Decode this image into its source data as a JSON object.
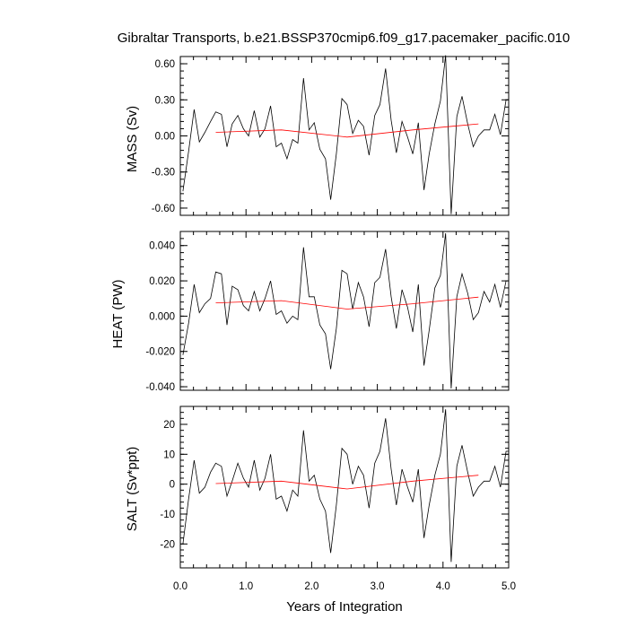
{
  "title": "Gibraltar Transports, b.e21.BSSP370cmip6.f09_g17.pacemaker_pacific.010",
  "chart_data": [
    {
      "type": "line",
      "ylabel": "MASS (Sv)",
      "ylim": [
        -0.66,
        0.66
      ],
      "yticks": [
        -0.6,
        -0.3,
        0.0,
        0.3,
        0.6
      ],
      "ytick_labels": [
        "-0.60",
        "-0.30",
        "0.00",
        "0.30",
        "0.60"
      ],
      "xlim": [
        0,
        5
      ],
      "series": [
        {
          "color": "#000000",
          "x": [
            0.04,
            0.125,
            0.21,
            0.29,
            0.375,
            0.46,
            0.54,
            0.625,
            0.71,
            0.79,
            0.875,
            0.96,
            1.04,
            1.125,
            1.21,
            1.29,
            1.375,
            1.46,
            1.54,
            1.625,
            1.71,
            1.79,
            1.875,
            1.96,
            2.04,
            2.125,
            2.21,
            2.29,
            2.375,
            2.46,
            2.54,
            2.625,
            2.71,
            2.79,
            2.875,
            2.96,
            3.04,
            3.125,
            3.21,
            3.29,
            3.375,
            3.46,
            3.54,
            3.625,
            3.71,
            3.79,
            3.875,
            3.96,
            4.04,
            4.125,
            4.21,
            4.29,
            4.375,
            4.46,
            4.54,
            4.625,
            4.71,
            4.79,
            4.875,
            4.96,
            5.0
          ],
          "y": [
            -0.46,
            -0.13,
            0.22,
            -0.05,
            0.03,
            0.12,
            0.2,
            0.18,
            -0.09,
            0.1,
            0.17,
            0.06,
            0.0,
            0.21,
            -0.01,
            0.06,
            0.25,
            -0.09,
            -0.06,
            -0.19,
            -0.03,
            -0.06,
            0.48,
            0.05,
            0.11,
            -0.11,
            -0.19,
            -0.53,
            -0.15,
            0.31,
            0.26,
            0.02,
            0.13,
            0.08,
            -0.16,
            0.17,
            0.26,
            0.56,
            0.13,
            -0.14,
            0.12,
            -0.01,
            -0.15,
            0.11,
            -0.45,
            -0.15,
            0.1,
            0.29,
            0.67,
            -0.65,
            0.16,
            0.33,
            0.1,
            -0.09,
            0.0,
            0.05,
            0.05,
            0.18,
            0.01,
            0.3,
            0.3
          ]
        },
        {
          "color": "#ff0000",
          "x": [
            0.54,
            1.54,
            2.54,
            3.54,
            4.54
          ],
          "y": [
            0.03,
            0.05,
            -0.01,
            0.05,
            0.1
          ]
        }
      ]
    },
    {
      "type": "line",
      "ylabel": "HEAT (PW)",
      "ylim": [
        -0.042,
        0.048
      ],
      "yticks": [
        -0.04,
        -0.02,
        0.0,
        0.02,
        0.04
      ],
      "ytick_labels": [
        "-0.040",
        "-0.020",
        "0.000",
        "0.020",
        "0.040"
      ],
      "xlim": [
        0,
        5
      ],
      "series": [
        {
          "color": "#000000",
          "x": [
            0.04,
            0.125,
            0.21,
            0.29,
            0.375,
            0.46,
            0.54,
            0.625,
            0.71,
            0.79,
            0.875,
            0.96,
            1.04,
            1.125,
            1.21,
            1.29,
            1.375,
            1.46,
            1.54,
            1.625,
            1.71,
            1.79,
            1.875,
            1.96,
            2.04,
            2.125,
            2.21,
            2.29,
            2.375,
            2.46,
            2.54,
            2.625,
            2.71,
            2.79,
            2.875,
            2.96,
            3.04,
            3.125,
            3.21,
            3.29,
            3.375,
            3.46,
            3.54,
            3.625,
            3.71,
            3.79,
            3.875,
            3.96,
            4.04,
            4.125,
            4.21,
            4.29,
            4.375,
            4.46,
            4.54,
            4.625,
            4.71,
            4.79,
            4.875,
            4.96,
            5.0
          ],
          "y": [
            -0.022,
            -0.004,
            0.018,
            0.002,
            0.007,
            0.01,
            0.025,
            0.024,
            -0.005,
            0.017,
            0.015,
            0.006,
            0.003,
            0.014,
            0.003,
            0.01,
            0.02,
            0.001,
            0.003,
            -0.004,
            0.0,
            -0.002,
            0.039,
            0.011,
            0.011,
            -0.005,
            -0.01,
            -0.03,
            -0.007,
            0.026,
            0.024,
            0.004,
            0.019,
            0.011,
            -0.006,
            0.019,
            0.022,
            0.038,
            0.011,
            -0.007,
            0.015,
            0.005,
            -0.009,
            0.018,
            -0.028,
            -0.008,
            0.016,
            0.023,
            0.047,
            -0.041,
            0.011,
            0.024,
            0.013,
            -0.002,
            0.002,
            0.014,
            0.008,
            0.018,
            0.005,
            0.02,
            0.02
          ]
        },
        {
          "color": "#ff0000",
          "x": [
            0.54,
            1.54,
            2.54,
            3.54,
            4.54
          ],
          "y": [
            0.0075,
            0.0088,
            0.004,
            0.007,
            0.0108
          ]
        }
      ]
    },
    {
      "type": "line",
      "ylabel": "SALT (Sv*ppt)",
      "ylim": [
        -28,
        26
      ],
      "yticks": [
        -20,
        -10,
        0,
        10,
        20
      ],
      "ytick_labels": [
        "-20",
        "-10",
        "0",
        "10",
        "20"
      ],
      "xlim": [
        0,
        5
      ],
      "xticks": [
        0,
        1,
        2,
        3,
        4,
        5
      ],
      "xtick_labels": [
        "0.0",
        "1.0",
        "2.0",
        "3.0",
        "4.0",
        "5.0"
      ],
      "xlabel": "Years of Integration",
      "series": [
        {
          "color": "#000000",
          "x": [
            0.04,
            0.125,
            0.21,
            0.29,
            0.375,
            0.46,
            0.54,
            0.625,
            0.71,
            0.79,
            0.875,
            0.96,
            1.04,
            1.125,
            1.21,
            1.29,
            1.375,
            1.46,
            1.54,
            1.625,
            1.71,
            1.79,
            1.875,
            1.96,
            2.04,
            2.125,
            2.21,
            2.29,
            2.375,
            2.46,
            2.54,
            2.625,
            2.71,
            2.79,
            2.875,
            2.96,
            3.04,
            3.125,
            3.21,
            3.29,
            3.375,
            3.46,
            3.54,
            3.625,
            3.71,
            3.79,
            3.875,
            3.96,
            4.04,
            4.125,
            4.21,
            4.29,
            4.375,
            4.46,
            4.54,
            4.625,
            4.71,
            4.79,
            4.875,
            4.96,
            5.0
          ],
          "y": [
            -20,
            -5,
            8,
            -3,
            -1,
            4,
            7,
            6,
            -4,
            1,
            7,
            2,
            -1,
            8,
            -2,
            2,
            10,
            -5,
            -4,
            -9,
            -2,
            -4,
            18,
            1,
            3,
            -5,
            -9,
            -23,
            -7,
            12,
            10,
            0,
            6,
            3,
            -8,
            7,
            11,
            22,
            5,
            -7,
            5,
            -1,
            -6,
            5,
            -18,
            -7,
            3,
            10,
            25,
            -26,
            6,
            13,
            4,
            -4,
            -1,
            1,
            1,
            6,
            -1,
            11,
            11
          ]
        },
        {
          "color": "#ff0000",
          "x": [
            0.54,
            1.54,
            2.54,
            3.54,
            4.54
          ],
          "y": [
            0.2,
            1.0,
            -1.6,
            1.0,
            3.0
          ]
        }
      ]
    }
  ]
}
